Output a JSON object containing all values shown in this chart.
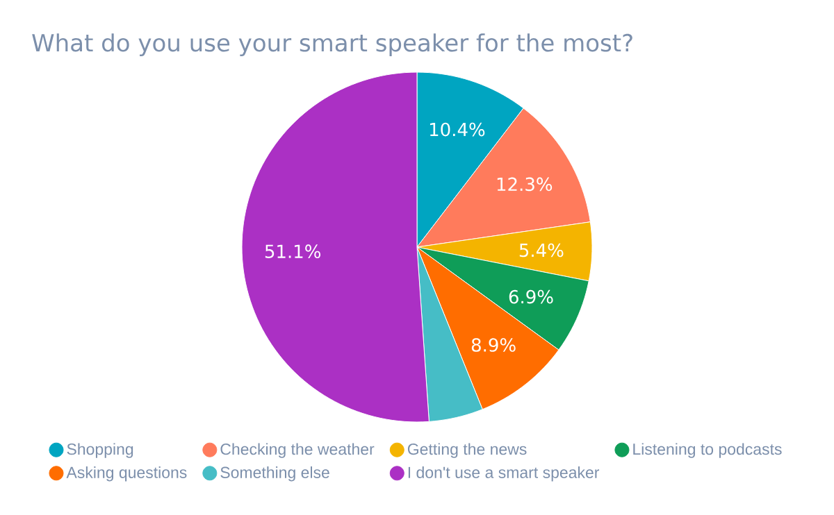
{
  "chart_data": {
    "type": "pie",
    "title": "What do you use your smart speaker for the most?",
    "categories": [
      "Shopping",
      "Checking the weather",
      "Getting the news",
      "Listening to podcasts",
      "Asking questions",
      "Something else",
      "I don't use a smart speaker"
    ],
    "values": [
      10.4,
      12.3,
      5.4,
      6.9,
      8.9,
      5.0,
      51.1
    ],
    "value_labels": [
      "10.4%",
      "12.3%",
      "5.4%",
      "6.9%",
      "8.9%",
      null,
      "51.1%"
    ],
    "colors": [
      "#00a5c1",
      "#ff7b5c",
      "#f4b400",
      "#0f9d58",
      "#ff6d00",
      "#46bdc6",
      "#ab30c4"
    ],
    "legend": "bottom"
  }
}
